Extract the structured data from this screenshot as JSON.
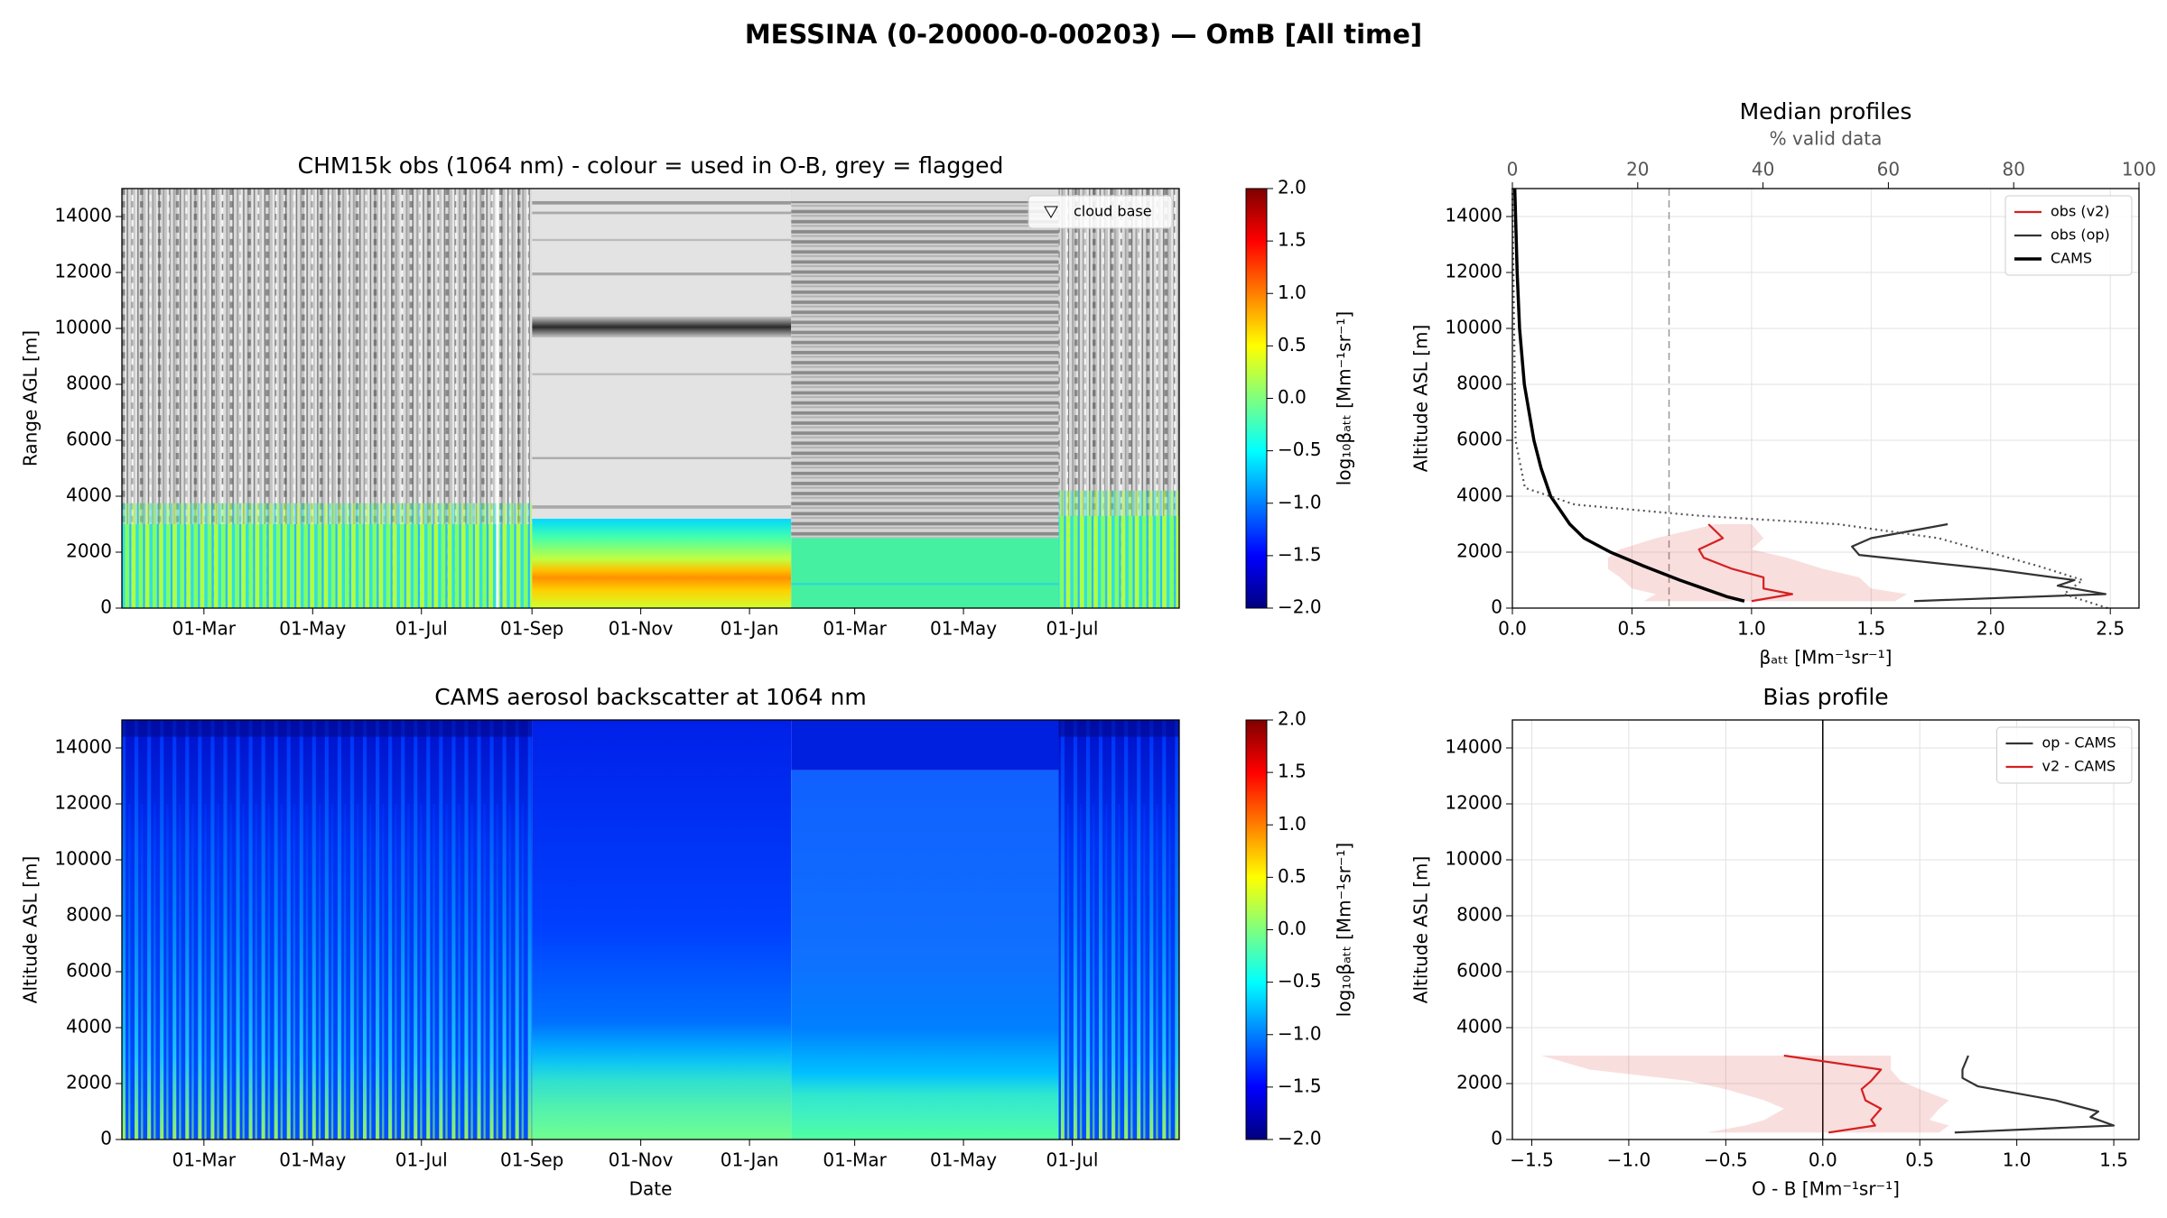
{
  "title": "MESSINA (0-20000-0-00203) — OmB [All time]",
  "chart_data": [
    {
      "type": "heatmap",
      "title": "CHM15k obs (1064 nm) - colour = used in O-B, grey = flagged",
      "y_label": "Range AGL [m]",
      "ylim": [
        0,
        15000
      ],
      "yticks": [
        0,
        2000,
        4000,
        6000,
        8000,
        10000,
        12000,
        14000
      ],
      "xlim": [
        0,
        593
      ],
      "xticks": [
        {
          "value": 46,
          "label": "01-Mar"
        },
        {
          "value": 107,
          "label": "01-May"
        },
        {
          "value": 168,
          "label": "01-Jul"
        },
        {
          "value": 230,
          "label": "01-Sep"
        },
        {
          "value": 291,
          "label": "01-Nov"
        },
        {
          "value": 352,
          "label": "01-Jan"
        },
        {
          "value": 411,
          "label": "01-Mar"
        },
        {
          "value": 472,
          "label": "01-May"
        },
        {
          "value": 533,
          "label": "01-Jul"
        }
      ],
      "colorbar": {
        "label": "log₁₀βₐₜₜ [Mm⁻¹sr⁻¹]",
        "lim": [
          -2,
          2
        ],
        "colormap": "jet",
        "ticks": [
          {
            "value": -2,
            "label": "−2.0"
          },
          {
            "value": -1.5,
            "label": "−1.5"
          },
          {
            "value": -1,
            "label": "−1.0"
          },
          {
            "value": -0.5,
            "label": "−0.5"
          },
          {
            "value": 0,
            "label": "0.0"
          },
          {
            "value": 0.5,
            "label": "0.5"
          },
          {
            "value": 1,
            "label": "1.0"
          },
          {
            "value": 1.5,
            "label": "1.5"
          },
          {
            "value": 2,
            "label": "2.0"
          }
        ]
      },
      "legend": "upper right",
      "legend_entries": [
        "cloud base"
      ]
    },
    {
      "type": "heatmap",
      "title": "CAMS aerosol backscatter at 1064 nm",
      "y_label": "Altitude ASL [m]",
      "x_label": "Date",
      "ylim": [
        0,
        15000
      ],
      "yticks": [
        0,
        2000,
        4000,
        6000,
        8000,
        10000,
        12000,
        14000
      ],
      "xlim": [
        0,
        593
      ],
      "xticks": [
        {
          "value": 46,
          "label": "01-Mar"
        },
        {
          "value": 107,
          "label": "01-May"
        },
        {
          "value": 168,
          "label": "01-Jul"
        },
        {
          "value": 230,
          "label": "01-Sep"
        },
        {
          "value": 291,
          "label": "01-Nov"
        },
        {
          "value": 352,
          "label": "01-Jan"
        },
        {
          "value": 411,
          "label": "01-Mar"
        },
        {
          "value": 472,
          "label": "01-May"
        },
        {
          "value": 533,
          "label": "01-Jul"
        }
      ],
      "colorbar": {
        "label": "log₁₀βₐₜₜ [Mm⁻¹sr⁻¹]",
        "lim": [
          -2,
          2
        ],
        "colormap": "jet",
        "ticks": [
          {
            "value": -2,
            "label": "−2.0"
          },
          {
            "value": -1.5,
            "label": "−1.5"
          },
          {
            "value": -1,
            "label": "−1.0"
          },
          {
            "value": -0.5,
            "label": "−0.5"
          },
          {
            "value": 0,
            "label": "0.0"
          },
          {
            "value": 0.5,
            "label": "0.5"
          },
          {
            "value": 1,
            "label": "1.0"
          },
          {
            "value": 1.5,
            "label": "1.5"
          },
          {
            "value": 2,
            "label": "2.0"
          }
        ]
      }
    },
    {
      "type": "line",
      "title": "Median profiles",
      "x_label": "βₐₜₜ [Mm⁻¹sr⁻¹]",
      "y_label": "Altitude ASL [m]",
      "x2_label": "% valid data",
      "xlim": [
        0,
        2.62
      ],
      "xticks": [
        {
          "value": 0,
          "label": "0.0"
        },
        0.5,
        {
          "value": 1,
          "label": "1.0"
        },
        1.5,
        {
          "value": 2,
          "label": "2.0"
        },
        2.5
      ],
      "x2lim": [
        0,
        100
      ],
      "x2ticks": [
        0,
        20,
        40,
        60,
        80,
        100
      ],
      "ylim": [
        0,
        15000
      ],
      "yticks": [
        0,
        2000,
        4000,
        6000,
        8000,
        10000,
        12000,
        14000
      ],
      "grid": true,
      "legend": "upper right",
      "reference_lines": [
        {
          "axis": "x2",
          "value": 25,
          "color": "#999999",
          "style": "dashed"
        }
      ],
      "series": [
        {
          "name": "obs (v2)",
          "color": "#d62020",
          "altitude": [
            250,
            500,
            700,
            1100,
            1400,
            1800,
            2100,
            2500,
            3000
          ],
          "values": [
            1.0,
            1.17,
            1.05,
            1.05,
            0.92,
            0.8,
            0.78,
            0.88,
            0.82
          ],
          "lower": [
            0.55,
            0.6,
            0.5,
            0.45,
            0.4,
            0.4,
            0.45,
            0.6,
            0.85
          ],
          "upper": [
            1.6,
            1.65,
            1.5,
            1.45,
            1.3,
            1.15,
            1.0,
            1.05,
            1.0
          ]
        },
        {
          "name": "obs (op)",
          "color": "#333333",
          "altitude": [
            250,
            500,
            800,
            1000,
            1400,
            1900,
            2200,
            2500,
            3000
          ],
          "values": [
            1.68,
            2.48,
            2.28,
            2.35,
            2.0,
            1.45,
            1.42,
            1.5,
            1.82
          ]
        },
        {
          "name": "CAMS",
          "color": "#000000",
          "width": 3.5,
          "altitude": [
            250,
            400,
            700,
            1000,
            1500,
            2000,
            2500,
            3000,
            4000,
            5000,
            6000,
            8000,
            10000,
            12000,
            15000
          ],
          "values": [
            0.97,
            0.9,
            0.8,
            0.7,
            0.55,
            0.41,
            0.3,
            0.24,
            0.16,
            0.12,
            0.09,
            0.05,
            0.03,
            0.02,
            0.01
          ]
        },
        {
          "axis": "x2",
          "color": "#555555",
          "style": "dotted",
          "altitude": [
            0,
            500,
            1000,
            1500,
            2000,
            2500,
            3000,
            3300,
            3700,
            4300,
            6000,
            15000
          ],
          "values": [
            95,
            88,
            91,
            84,
            76,
            68,
            52,
            30,
            10,
            2,
            0.5,
            0
          ]
        }
      ]
    },
    {
      "type": "line",
      "title": "Bias profile",
      "x_label": "O - B [Mm⁻¹sr⁻¹]",
      "y_label": "Altitude ASL [m]",
      "xlim": [
        -1.6,
        1.63
      ],
      "xticks": [
        {
          "value": -1.5,
          "label": "−1.5"
        },
        {
          "value": -1,
          "label": "−1.0"
        },
        {
          "value": -0.5,
          "label": "−0.5"
        },
        {
          "value": 0,
          "label": "0.0"
        },
        0.5,
        {
          "value": 1,
          "label": "1.0"
        },
        1.5
      ],
      "ylim": [
        0,
        15000
      ],
      "yticks": [
        0,
        2000,
        4000,
        6000,
        8000,
        10000,
        12000,
        14000
      ],
      "grid": true,
      "legend": "upper right",
      "reference_lines": [
        {
          "axis": "x",
          "value": 0,
          "color": "#000000",
          "style": "solid"
        }
      ],
      "series": [
        {
          "name": "op - CAMS",
          "color": "#333333",
          "altitude": [
            250,
            500,
            800,
            1000,
            1400,
            1900,
            2200,
            2500,
            3000
          ],
          "values": [
            0.68,
            1.5,
            1.38,
            1.42,
            1.2,
            0.8,
            0.72,
            0.72,
            0.75
          ]
        },
        {
          "name": "v2 - CAMS",
          "color": "#d62020",
          "altitude": [
            250,
            500,
            700,
            1100,
            1400,
            1800,
            2100,
            2500,
            3000
          ],
          "values": [
            0.03,
            0.27,
            0.25,
            0.3,
            0.22,
            0.2,
            0.25,
            0.3,
            -0.2
          ],
          "lower": [
            -0.6,
            -0.4,
            -0.3,
            -0.2,
            -0.3,
            -0.5,
            -0.7,
            -1.2,
            -1.45
          ],
          "upper": [
            0.6,
            0.65,
            0.55,
            0.6,
            0.65,
            0.5,
            0.4,
            0.35,
            0.35
          ]
        }
      ]
    }
  ]
}
